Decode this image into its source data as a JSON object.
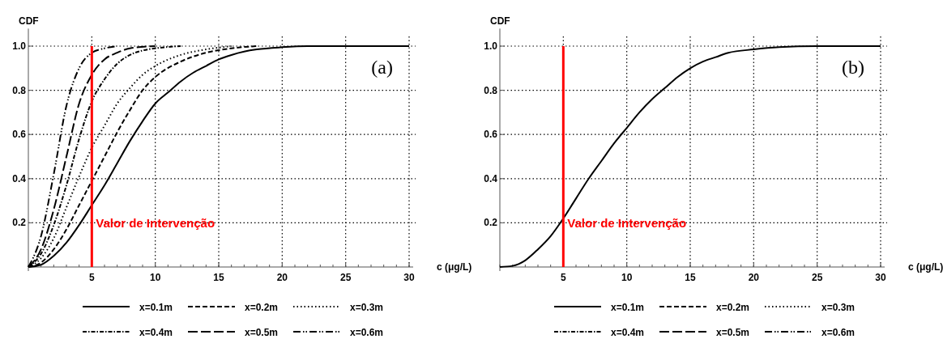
{
  "chart_data": [
    {
      "type": "line",
      "ylabel": "CDF",
      "xlabel": "c (μg/L)",
      "annotations": [
        "(a)"
      ],
      "xlim": [
        0,
        30
      ],
      "ylim": [
        0,
        1.05
      ],
      "xticks": [
        5,
        10,
        15,
        20,
        25,
        30
      ],
      "yticks": [
        0.2,
        0.4,
        0.6,
        0.8,
        {
          "value": 1,
          "label": "1.0"
        }
      ],
      "grid": true,
      "legend": "bottom",
      "color": "#000000",
      "ref_lines": [
        {
          "axis": "x",
          "value": 5,
          "label": "Valor de Intervenção",
          "color": "#ff0000"
        }
      ],
      "series": [
        {
          "name": "x=0.1m",
          "line_style": "solid",
          "x": [
            0,
            1,
            2,
            3,
            4,
            5,
            6,
            7,
            8,
            9,
            10,
            11,
            12,
            13,
            14,
            15,
            16,
            17,
            18,
            20,
            22,
            30
          ],
          "values": [
            0,
            0.01,
            0.05,
            0.11,
            0.19,
            0.28,
            0.37,
            0.47,
            0.57,
            0.66,
            0.74,
            0.79,
            0.84,
            0.88,
            0.91,
            0.94,
            0.96,
            0.975,
            0.985,
            0.995,
            1,
            1
          ]
        },
        {
          "name": "x=0.2m",
          "line_style": "dashed",
          "x": [
            0,
            1,
            2,
            3,
            4,
            5,
            6,
            7,
            8,
            9,
            10,
            12,
            14,
            16,
            18
          ],
          "values": [
            0,
            0.02,
            0.08,
            0.17,
            0.28,
            0.39,
            0.5,
            0.61,
            0.71,
            0.8,
            0.86,
            0.93,
            0.97,
            0.99,
            1
          ]
        },
        {
          "name": "x=0.3m",
          "line_style": "dotted",
          "x": [
            0,
            1,
            2,
            3,
            4,
            5,
            6,
            7,
            8,
            9,
            10,
            12,
            14,
            16
          ],
          "values": [
            0,
            0.04,
            0.13,
            0.27,
            0.41,
            0.54,
            0.64,
            0.74,
            0.81,
            0.87,
            0.91,
            0.96,
            0.985,
            1
          ]
        },
        {
          "name": "x=0.4m",
          "line_style": "dashdot",
          "x": [
            0,
            1,
            2,
            3,
            4,
            5,
            6,
            7,
            8,
            9,
            10,
            12
          ],
          "values": [
            0,
            0.06,
            0.19,
            0.37,
            0.58,
            0.75,
            0.85,
            0.92,
            0.96,
            0.98,
            0.99,
            1
          ]
        },
        {
          "name": "x=0.5m",
          "line_style": "longdash",
          "x": [
            0,
            1,
            2,
            3,
            4,
            5,
            6,
            7,
            8,
            10
          ],
          "values": [
            0,
            0.08,
            0.26,
            0.5,
            0.74,
            0.87,
            0.94,
            0.97,
            0.99,
            1
          ]
        },
        {
          "name": "x=0.6m",
          "line_style": "dashdotdot",
          "x": [
            0,
            1,
            2,
            3,
            4,
            5,
            6,
            7
          ],
          "values": [
            0,
            0.14,
            0.42,
            0.73,
            0.9,
            0.97,
            0.99,
            1
          ]
        }
      ]
    },
    {
      "type": "line",
      "ylabel": "CDF",
      "xlabel": "c (μg/L)",
      "annotations": [
        "(b)"
      ],
      "xlim": [
        0,
        30
      ],
      "ylim": [
        0,
        1.05
      ],
      "xticks": [
        5,
        10,
        15,
        20,
        25,
        30
      ],
      "yticks": [
        0.2,
        0.4,
        0.6,
        0.8,
        {
          "value": 1,
          "label": "1.0"
        }
      ],
      "grid": true,
      "legend": "bottom",
      "color": "#000000",
      "ref_lines": [
        {
          "axis": "x",
          "value": 5,
          "label": "Valor de Intervenção",
          "color": "#ff0000"
        }
      ],
      "series": [
        {
          "name": "x=0.1m",
          "line_style": "solid",
          "x": [
            0,
            1,
            2,
            3,
            4,
            5,
            6,
            7,
            8,
            9,
            10,
            11,
            12,
            13,
            14,
            15,
            16,
            17,
            18,
            20,
            22,
            25,
            30
          ],
          "values": [
            0,
            0.005,
            0.03,
            0.08,
            0.14,
            0.22,
            0.31,
            0.4,
            0.48,
            0.56,
            0.63,
            0.7,
            0.76,
            0.81,
            0.86,
            0.9,
            0.93,
            0.95,
            0.97,
            0.985,
            0.995,
            1,
            1
          ]
        },
        {
          "name": "x=0.2m",
          "line_style": "dashed"
        },
        {
          "name": "x=0.3m",
          "line_style": "dotted"
        },
        {
          "name": "x=0.4m",
          "line_style": "dashdot"
        },
        {
          "name": "x=0.5m",
          "line_style": "longdash"
        },
        {
          "name": "x=0.6m",
          "line_style": "dashdotdot"
        }
      ]
    }
  ]
}
